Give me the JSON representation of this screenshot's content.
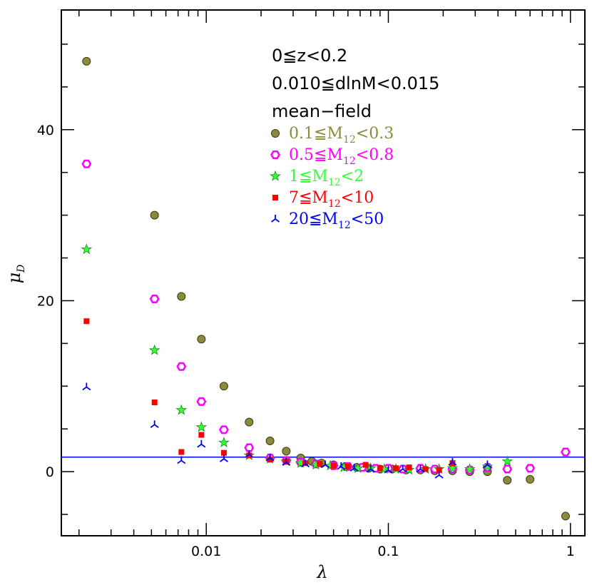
{
  "chart_data": {
    "type": "scatter",
    "title": "",
    "xlabel": "λ",
    "ylabel": "μ",
    "ylabel_sub": "D",
    "xscale": "log",
    "xlim": [
      0.0016,
      1.2
    ],
    "ylim": [
      -7.5,
      54
    ],
    "x_ticks": [
      {
        "v": 0.01,
        "label": "0.01"
      },
      {
        "v": 0.1,
        "label": "0.1"
      },
      {
        "v": 1,
        "label": "1"
      }
    ],
    "y_ticks": [
      {
        "v": 0,
        "label": "0"
      },
      {
        "v": 20,
        "label": "20"
      },
      {
        "v": 40,
        "label": "40"
      }
    ],
    "hline": {
      "y": 1.7,
      "color": "#0000ff"
    },
    "annotations": [
      "0≦z<0.2",
      "0.010≦dlnM<0.015",
      "mean−field"
    ],
    "series": [
      {
        "name": "0.1≦M12<0.3",
        "label_main": "0.1≦M",
        "label_sub": "12",
        "label_tail": "<0.3",
        "color": "#8c8a3c",
        "stroke": "#3a3a14",
        "marker": "circle",
        "points": [
          [
            0.0022,
            48
          ],
          [
            0.0052,
            30
          ],
          [
            0.0073,
            20.5
          ],
          [
            0.0094,
            15.5
          ],
          [
            0.0125,
            10
          ],
          [
            0.0172,
            5.8
          ],
          [
            0.0224,
            3.6
          ],
          [
            0.0275,
            2.4
          ],
          [
            0.033,
            1.6
          ],
          [
            0.038,
            1.2
          ],
          [
            0.043,
            1.0
          ],
          [
            0.05,
            0.8
          ],
          [
            0.058,
            0.6
          ],
          [
            0.067,
            0.5
          ],
          [
            0.078,
            0.4
          ],
          [
            0.09,
            0.3
          ],
          [
            0.105,
            0.3
          ],
          [
            0.125,
            0.2
          ],
          [
            0.15,
            0.2
          ],
          [
            0.18,
            0.1
          ],
          [
            0.225,
            0.1
          ],
          [
            0.28,
            0.0
          ],
          [
            0.35,
            0.0
          ],
          [
            0.45,
            -1.0
          ],
          [
            0.6,
            -0.9
          ],
          [
            0.94,
            -5.2
          ]
        ]
      },
      {
        "name": "0.5≦M12<0.8",
        "label_main": "0.5≦M",
        "label_sub": "12",
        "label_tail": "<0.8",
        "color": "#ff00ff",
        "stroke": "#c000c0",
        "marker": "hexagon",
        "points": [
          [
            0.0022,
            36
          ],
          [
            0.0052,
            20.2
          ],
          [
            0.0073,
            12.3
          ],
          [
            0.0094,
            8.2
          ],
          [
            0.0125,
            4.9
          ],
          [
            0.0172,
            2.8
          ],
          [
            0.0224,
            1.6
          ],
          [
            0.0275,
            1.3
          ],
          [
            0.033,
            1.1
          ],
          [
            0.04,
            0.9
          ],
          [
            0.05,
            0.7
          ],
          [
            0.06,
            0.6
          ],
          [
            0.072,
            0.5
          ],
          [
            0.085,
            0.4
          ],
          [
            0.1,
            0.4
          ],
          [
            0.12,
            0.3
          ],
          [
            0.15,
            0.4
          ],
          [
            0.18,
            0.3
          ],
          [
            0.225,
            0.3
          ],
          [
            0.28,
            0.2
          ],
          [
            0.35,
            0.5
          ],
          [
            0.45,
            0.3
          ],
          [
            0.6,
            0.4
          ],
          [
            0.94,
            2.3
          ]
        ]
      },
      {
        "name": "1≦M12<2",
        "label_main": "1≦M",
        "label_sub": "12",
        "label_tail": "<2",
        "color": "#33ff33",
        "stroke": "#1a8a1a",
        "marker": "star",
        "points": [
          [
            0.0022,
            26
          ],
          [
            0.0052,
            14.2
          ],
          [
            0.0073,
            7.2
          ],
          [
            0.0094,
            5.2
          ],
          [
            0.0125,
            3.4
          ],
          [
            0.0172,
            1.9
          ],
          [
            0.0224,
            1.5
          ],
          [
            0.0275,
            1.2
          ],
          [
            0.033,
            1.0
          ],
          [
            0.04,
            0.8
          ],
          [
            0.048,
            0.7
          ],
          [
            0.057,
            0.5
          ],
          [
            0.068,
            0.4
          ],
          [
            0.08,
            0.4
          ],
          [
            0.095,
            0.3
          ],
          [
            0.11,
            0.3
          ],
          [
            0.13,
            0.2
          ],
          [
            0.16,
            0.3
          ],
          [
            0.19,
            0.3
          ],
          [
            0.225,
            0.4
          ],
          [
            0.28,
            0.3
          ],
          [
            0.35,
            0.6
          ],
          [
            0.45,
            1.2
          ]
        ]
      },
      {
        "name": "7≦M12<10",
        "label_main": "7≦M",
        "label_sub": "12",
        "label_tail": "<10",
        "color": "#ff0000",
        "stroke": "#a00000",
        "marker": "square",
        "points": [
          [
            0.0022,
            17.6
          ],
          [
            0.0052,
            8.1
          ],
          [
            0.0073,
            2.3
          ],
          [
            0.0094,
            4.3
          ],
          [
            0.0125,
            2.2
          ],
          [
            0.0172,
            1.9
          ],
          [
            0.0224,
            1.4
          ],
          [
            0.0275,
            1.2
          ],
          [
            0.035,
            1.0
          ],
          [
            0.042,
            0.9
          ],
          [
            0.05,
            0.7
          ],
          [
            0.06,
            0.6
          ],
          [
            0.075,
            0.8
          ],
          [
            0.09,
            0.4
          ],
          [
            0.11,
            0.4
          ],
          [
            0.13,
            0.5
          ],
          [
            0.16,
            0.3
          ],
          [
            0.19,
            0.2
          ],
          [
            0.225,
            1.0
          ]
        ]
      },
      {
        "name": "20≦M12<50",
        "label_main": "20≦M",
        "label_sub": "12",
        "label_tail": "<50",
        "color": "#0000ff",
        "stroke": "#0000ff",
        "marker": "tri",
        "points": [
          [
            0.0022,
            9.9
          ],
          [
            0.0052,
            5.5
          ],
          [
            0.0073,
            1.3
          ],
          [
            0.0094,
            3.2
          ],
          [
            0.0125,
            1.5
          ],
          [
            0.0172,
            2.0
          ],
          [
            0.0224,
            1.6
          ],
          [
            0.0275,
            1.1
          ],
          [
            0.035,
            0.9
          ],
          [
            0.045,
            0.8
          ],
          [
            0.055,
            0.6
          ],
          [
            0.065,
            0.4
          ],
          [
            0.08,
            0.3
          ],
          [
            0.1,
            0.2
          ],
          [
            0.12,
            0.3
          ],
          [
            0.15,
            0.3
          ],
          [
            0.19,
            -0.4
          ],
          [
            0.225,
            1.1
          ],
          [
            0.35,
            0.8
          ]
        ]
      }
    ]
  }
}
